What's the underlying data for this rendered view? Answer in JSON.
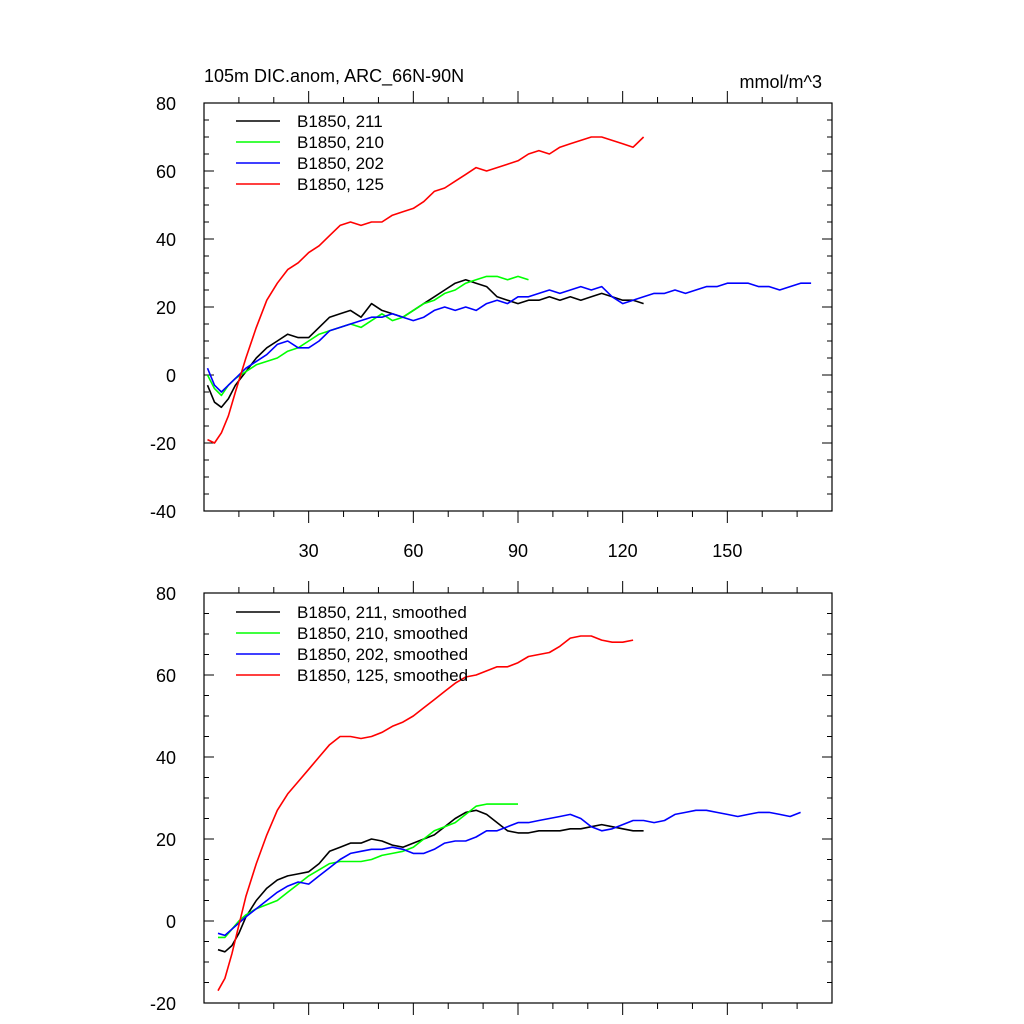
{
  "chart_data": [
    {
      "type": "line",
      "title": "105m DIC.anom, ARC_66N-90N",
      "units": "mmol/m^3",
      "xlim": [
        0,
        180
      ],
      "ylim": [
        -40,
        80
      ],
      "xticks": [
        30,
        60,
        90,
        120,
        150
      ],
      "xtick_labels": [
        "30",
        "60",
        "90",
        "120",
        "150"
      ],
      "yticks": [
        -40,
        -20,
        0,
        20,
        40,
        60,
        80
      ],
      "ytick_labels": [
        "-40",
        "-20",
        "0",
        "20",
        "40",
        "60",
        "80"
      ],
      "legend_position": "top-left",
      "series": [
        {
          "name": "B1850, 211",
          "color": "#000000",
          "x": [
            1,
            3,
            5,
            7,
            9,
            12,
            15,
            18,
            21,
            24,
            27,
            30,
            33,
            36,
            39,
            42,
            45,
            48,
            51,
            54,
            57,
            60,
            63,
            66,
            69,
            72,
            75,
            78,
            81,
            84,
            87,
            90,
            93,
            96,
            99,
            102,
            105,
            108,
            111,
            114,
            117,
            120,
            123,
            126
          ],
          "y": [
            -3,
            -8,
            -9.5,
            -7,
            -3,
            1,
            5,
            8,
            10,
            12,
            11,
            11,
            14,
            17,
            18,
            19,
            17,
            21,
            19,
            18,
            17,
            19,
            21,
            23,
            25,
            27,
            28,
            27,
            26,
            23,
            22,
            21,
            22,
            22,
            23,
            22,
            23,
            22,
            23,
            24,
            23,
            22,
            22,
            21
          ]
        },
        {
          "name": "B1850, 210",
          "color": "#00ff00",
          "x": [
            1,
            3,
            5,
            7,
            9,
            12,
            15,
            18,
            21,
            24,
            27,
            30,
            33,
            36,
            39,
            42,
            45,
            48,
            51,
            54,
            57,
            60,
            63,
            66,
            69,
            72,
            75,
            78,
            81,
            84,
            87,
            90,
            93
          ],
          "y": [
            0,
            -4,
            -6,
            -3,
            -1,
            1,
            3,
            4,
            5,
            7,
            8,
            10,
            12,
            13,
            14,
            15,
            14,
            16,
            18,
            16,
            17,
            19,
            21,
            22,
            24,
            25,
            27,
            28,
            29,
            29,
            28,
            29,
            28
          ]
        },
        {
          "name": "B1850, 202",
          "color": "#0000ff",
          "x": [
            1,
            3,
            5,
            7,
            9,
            12,
            15,
            18,
            21,
            24,
            27,
            30,
            33,
            36,
            39,
            42,
            45,
            48,
            51,
            54,
            57,
            60,
            63,
            66,
            69,
            72,
            75,
            78,
            81,
            84,
            87,
            90,
            93,
            96,
            99,
            102,
            105,
            108,
            111,
            114,
            117,
            120,
            123,
            126,
            129,
            132,
            135,
            138,
            141,
            144,
            147,
            150,
            153,
            156,
            159,
            162,
            165,
            168,
            171,
            174
          ],
          "y": [
            2,
            -3,
            -5,
            -3,
            -1,
            2,
            4,
            6,
            9,
            10,
            8,
            8,
            10,
            13,
            14,
            15,
            16,
            17,
            17,
            18,
            17,
            16,
            17,
            19,
            20,
            19,
            20,
            19,
            21,
            22,
            21,
            23,
            23,
            24,
            25,
            24,
            25,
            26,
            25,
            26,
            23,
            21,
            22,
            23,
            24,
            24,
            25,
            24,
            25,
            26,
            26,
            27,
            27,
            27,
            26,
            26,
            25,
            26,
            27,
            27
          ]
        },
        {
          "name": "B1850, 125",
          "color": "#ff0000",
          "x": [
            1,
            3,
            5,
            7,
            9,
            12,
            15,
            18,
            21,
            24,
            27,
            30,
            33,
            36,
            39,
            42,
            45,
            48,
            51,
            54,
            57,
            60,
            63,
            66,
            69,
            72,
            75,
            78,
            81,
            84,
            87,
            90,
            93,
            96,
            99,
            102,
            105,
            108,
            111,
            114,
            117,
            120,
            123,
            126
          ],
          "y": [
            -19,
            -20,
            -17,
            -12,
            -5,
            5,
            14,
            22,
            27,
            31,
            33,
            36,
            38,
            41,
            44,
            45,
            44,
            45,
            45,
            47,
            48,
            49,
            51,
            54,
            55,
            57,
            59,
            61,
            60,
            61,
            62,
            63,
            65,
            66,
            65,
            67,
            68,
            69,
            70,
            70,
            69,
            68,
            67,
            70
          ]
        }
      ]
    },
    {
      "type": "line",
      "title": "",
      "xlim": [
        0,
        180
      ],
      "ylim": [
        -20,
        80
      ],
      "xticks": [
        30,
        60,
        90,
        120,
        150
      ],
      "yticks": [
        -20,
        0,
        20,
        40,
        60,
        80
      ],
      "ytick_labels": [
        "-20",
        "0",
        "20",
        "40",
        "60",
        "80"
      ],
      "legend_position": "top-left",
      "series": [
        {
          "name": "B1850, 211, smoothed",
          "color": "#000000",
          "x": [
            4,
            6,
            8,
            10,
            12,
            15,
            18,
            21,
            24,
            27,
            30,
            33,
            36,
            39,
            42,
            45,
            48,
            51,
            54,
            57,
            60,
            63,
            66,
            69,
            72,
            75,
            78,
            81,
            84,
            87,
            90,
            93,
            96,
            99,
            102,
            105,
            108,
            111,
            114,
            117,
            120,
            123,
            126
          ],
          "y": [
            -7,
            -7.5,
            -6,
            -3,
            1,
            5,
            8,
            10,
            11,
            11.5,
            12,
            14,
            17,
            18,
            19,
            19,
            20,
            19.5,
            18.5,
            18,
            19,
            20,
            21,
            23,
            25,
            26.5,
            27,
            26,
            24,
            22,
            21.5,
            21.5,
            22,
            22,
            22,
            22.5,
            22.5,
            23,
            23.5,
            23,
            22.5,
            22,
            22
          ]
        },
        {
          "name": "B1850, 210, smoothed",
          "color": "#00ff00",
          "x": [
            4,
            6,
            8,
            10,
            12,
            15,
            18,
            21,
            24,
            27,
            30,
            33,
            36,
            39,
            42,
            45,
            48,
            51,
            54,
            57,
            60,
            63,
            66,
            69,
            72,
            75,
            78,
            81,
            84,
            87,
            90
          ],
          "y": [
            -4,
            -4,
            -2,
            0,
            1.5,
            3,
            4,
            5,
            7,
            9,
            11,
            12.5,
            14,
            14.5,
            14.5,
            14.5,
            15,
            16,
            16.5,
            17,
            18,
            20,
            22,
            23,
            24,
            26,
            28,
            28.5,
            28.5,
            28.5,
            28.5
          ]
        },
        {
          "name": "B1850, 202, smoothed",
          "color": "#0000ff",
          "x": [
            4,
            6,
            8,
            10,
            12,
            15,
            18,
            21,
            24,
            27,
            30,
            33,
            36,
            39,
            42,
            45,
            48,
            51,
            54,
            57,
            60,
            63,
            66,
            69,
            72,
            75,
            78,
            81,
            84,
            87,
            90,
            93,
            96,
            99,
            102,
            105,
            108,
            111,
            114,
            117,
            120,
            123,
            126,
            129,
            132,
            135,
            138,
            141,
            144,
            147,
            150,
            153,
            156,
            159,
            162,
            165,
            168,
            171
          ],
          "y": [
            -3,
            -3.5,
            -2,
            -0.5,
            1,
            3,
            5,
            7,
            8.5,
            9.5,
            9,
            11,
            13,
            15,
            16.5,
            17,
            17.5,
            17.5,
            18,
            17.5,
            16.5,
            16.5,
            17.5,
            19,
            19.5,
            19.5,
            20.5,
            22,
            22,
            23,
            24,
            24,
            24.5,
            25,
            25.5,
            26,
            25,
            23,
            22,
            22.5,
            23.5,
            24.5,
            24.5,
            24,
            24.5,
            26,
            26.5,
            27,
            27,
            26.5,
            26,
            25.5,
            26,
            26.5,
            26.5,
            26,
            25.5,
            26.5
          ]
        },
        {
          "name": "B1850, 125, smoothed",
          "color": "#ff0000",
          "x": [
            4,
            6,
            8,
            10,
            12,
            15,
            18,
            21,
            24,
            27,
            30,
            33,
            36,
            39,
            42,
            45,
            48,
            51,
            54,
            57,
            60,
            63,
            66,
            69,
            72,
            75,
            78,
            81,
            84,
            87,
            90,
            93,
            96,
            99,
            102,
            105,
            108,
            111,
            114,
            117,
            120,
            123
          ],
          "y": [
            -17,
            -14,
            -8,
            -1,
            6,
            14,
            21,
            27,
            31,
            34,
            37,
            40,
            43,
            45,
            45,
            44.5,
            45,
            46,
            47.5,
            48.5,
            50,
            52,
            54,
            56,
            58,
            59.5,
            60,
            61,
            62,
            62,
            63,
            64.5,
            65,
            65.5,
            67,
            69,
            69.5,
            69.5,
            68.5,
            68,
            68,
            68.5
          ]
        }
      ]
    }
  ]
}
